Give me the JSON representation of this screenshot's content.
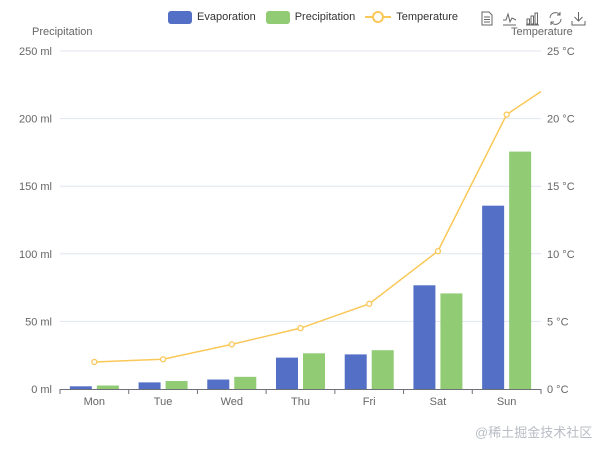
{
  "legend": {
    "items": [
      {
        "label": "Evaporation",
        "color": "#5470c6",
        "type": "bar"
      },
      {
        "label": "Precipitation",
        "color": "#91cc75",
        "type": "bar"
      },
      {
        "label": "Temperature",
        "color": "#fac858",
        "type": "line"
      }
    ]
  },
  "toolbox": {
    "icons": [
      "data-view-icon",
      "line-chart-icon",
      "bar-chart-icon",
      "restore-icon",
      "save-image-icon"
    ]
  },
  "axes": {
    "left_name": "Precipitation",
    "right_name": "Temperature"
  },
  "watermark": "@稀土掘金技术社区",
  "chart_data": {
    "type": "bar",
    "title": "",
    "categories": [
      "Mon",
      "Tue",
      "Wed",
      "Thu",
      "Fri",
      "Sat",
      "Sun"
    ],
    "series": [
      {
        "name": "Evaporation",
        "type": "bar",
        "yAxis": "left",
        "values": [
          2.0,
          4.9,
          7.0,
          23.2,
          25.6,
          76.7,
          135.6
        ]
      },
      {
        "name": "Precipitation",
        "type": "bar",
        "yAxis": "left",
        "values": [
          2.6,
          5.9,
          9.0,
          26.4,
          28.7,
          70.7,
          175.6
        ]
      },
      {
        "name": "Temperature",
        "type": "line",
        "yAxis": "right",
        "values": [
          2.0,
          2.2,
          3.3,
          4.5,
          6.3,
          10.2,
          20.3
        ],
        "continuation": 22.0
      }
    ],
    "xlabel": "",
    "ylabel_left": "Precipitation",
    "ylabel_right": "Temperature",
    "ylim_left": [
      0,
      250
    ],
    "ylim_right": [
      0,
      25
    ],
    "yticks_left": [
      "0 ml",
      "50 ml",
      "100 ml",
      "150 ml",
      "200 ml",
      "250 ml"
    ],
    "yticks_right": [
      "0 °C",
      "5 °C",
      "10 °C",
      "15 °C",
      "20 °C",
      "25 °C"
    ],
    "grid": true,
    "legend_position": "top"
  }
}
